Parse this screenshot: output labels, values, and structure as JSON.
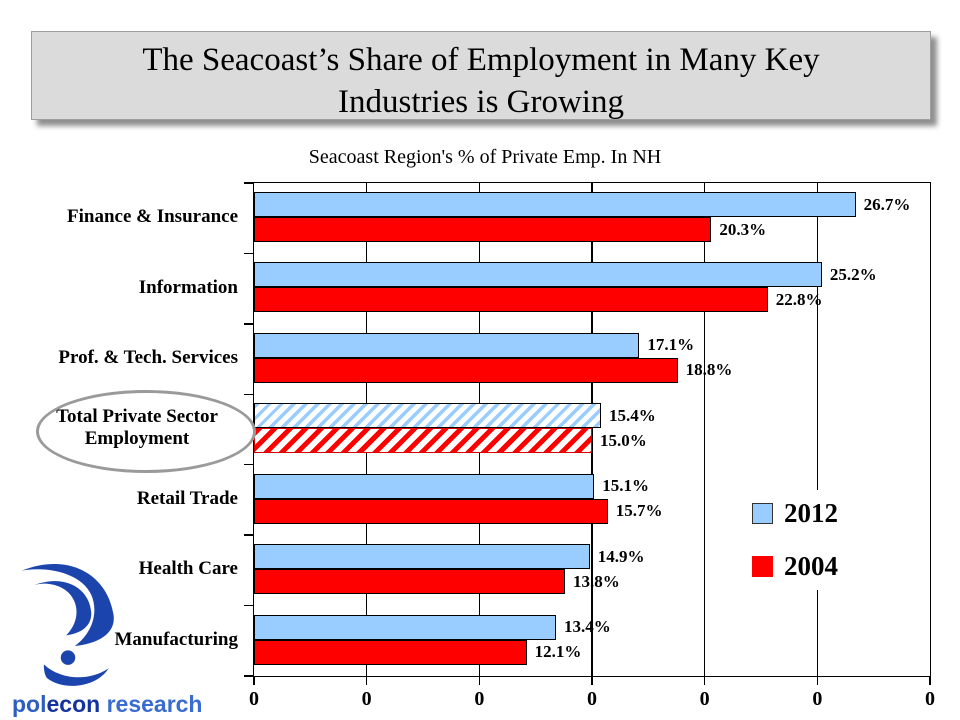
{
  "slide": {
    "title_lines": [
      "The Seacoast’s Share of Employment in Many Key",
      "Industries is Growing"
    ]
  },
  "logo": {
    "name": "polecon research",
    "parts": [
      {
        "text": "pol",
        "color": "#2E5FC0"
      },
      {
        "text": "econ",
        "color": "#14339E"
      },
      {
        "text": " research",
        "color": "#3A6BD0"
      }
    ],
    "mark_color": "#1B44AD"
  },
  "chart_data": {
    "type": "bar",
    "orientation": "horizontal",
    "title": "Seacoast Region's % of Private Emp. In NH",
    "categories": [
      "Finance & Insurance",
      "Information",
      "Prof. & Tech. Services",
      "Total Private Sector Employment",
      "Retail Trade",
      "Health Care",
      "Manufacturing"
    ],
    "series": [
      {
        "name": "2012",
        "color": "#99CCFF",
        "values": [
          26.7,
          25.2,
          17.1,
          15.4,
          15.1,
          14.9,
          13.4
        ]
      },
      {
        "name": "2004",
        "color": "#FF0000",
        "values": [
          20.3,
          22.8,
          18.8,
          15.0,
          15.7,
          13.8,
          12.1
        ]
      }
    ],
    "value_labels": {
      "2012": [
        "26.7%",
        "25.2%",
        "17.1%",
        "15.4%",
        "15.1%",
        "14.9%",
        "13.4%"
      ],
      "2004": [
        "20.3%",
        "22.8%",
        "18.8%",
        "15.0%",
        "15.7%",
        "13.8%",
        "12.1%"
      ]
    },
    "x_axis": {
      "min": 0,
      "max": 30,
      "gridline_interval": 5,
      "tick_labels": [
        "0",
        "0",
        "0",
        "0",
        "0",
        "0",
        "0"
      ],
      "grid": true
    },
    "legend": {
      "position": "right-center",
      "entries": [
        "2012",
        "2004"
      ]
    },
    "annotations": {
      "circled_category": "Total Private Sector Employment",
      "hatched_category_index": 3
    }
  }
}
